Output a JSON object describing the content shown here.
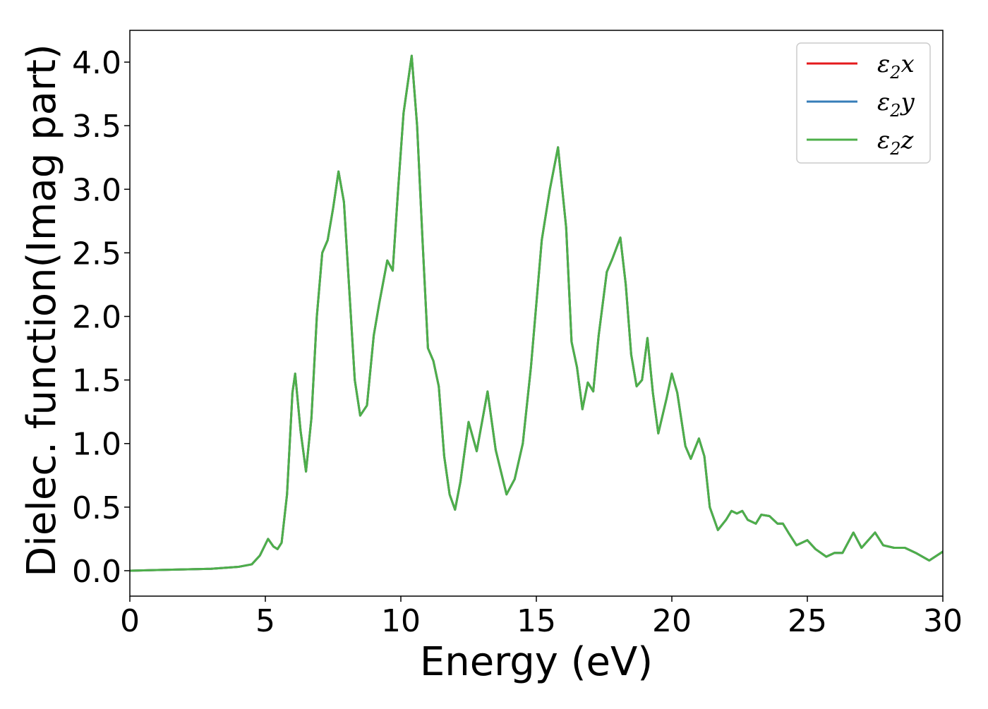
{
  "chart_data": {
    "type": "line",
    "title": "",
    "xlabel": "Energy (eV)",
    "ylabel": "Dielec. function(Imag part)",
    "xlim": [
      0,
      30
    ],
    "ylim": [
      -0.2,
      4.25
    ],
    "xticks": [
      0,
      5,
      10,
      15,
      20,
      25,
      30
    ],
    "xtick_labels": [
      "0",
      "5",
      "10",
      "15",
      "20",
      "25",
      "30"
    ],
    "yticks": [
      0.0,
      0.5,
      1.0,
      1.5,
      2.0,
      2.5,
      3.0,
      3.5,
      4.0
    ],
    "ytick_labels": [
      "0.0",
      "0.5",
      "1.0",
      "1.5",
      "2.0",
      "2.5",
      "3.0",
      "3.5",
      "4.0"
    ],
    "grid": false,
    "legend_position": "top-right",
    "series": [
      {
        "name": "ε2x",
        "legend_base": "ε",
        "legend_sub": "2",
        "legend_suffix": "x",
        "color": "#e41a1c",
        "x": [
          0,
          1,
          2,
          3,
          4,
          4.5,
          4.8,
          5.1,
          5.3,
          5.45,
          5.6,
          5.8,
          6.0,
          6.1,
          6.3,
          6.5,
          6.7,
          6.9,
          7.1,
          7.3,
          7.5,
          7.7,
          7.9,
          8.1,
          8.3,
          8.5,
          8.75,
          9.0,
          9.2,
          9.5,
          9.7,
          9.9,
          10.1,
          10.4,
          10.6,
          10.8,
          11.0,
          11.2,
          11.4,
          11.6,
          11.8,
          12.0,
          12.2,
          12.5,
          12.8,
          13.2,
          13.5,
          13.9,
          14.2,
          14.5,
          14.8,
          15.0,
          15.2,
          15.5,
          15.8,
          16.1,
          16.3,
          16.5,
          16.7,
          16.9,
          17.1,
          17.3,
          17.6,
          17.8,
          18.1,
          18.3,
          18.5,
          18.7,
          18.9,
          19.1,
          19.3,
          19.5,
          19.8,
          20.0,
          20.2,
          20.5,
          20.7,
          21.0,
          21.2,
          21.4,
          21.7,
          22.0,
          22.2,
          22.4,
          22.6,
          22.8,
          23.1,
          23.3,
          23.6,
          23.9,
          24.1,
          24.3,
          24.6,
          25.0,
          25.3,
          25.7,
          26.0,
          26.3,
          26.7,
          27.0,
          27.5,
          27.8,
          28.2,
          28.6,
          29.0,
          29.5,
          30.0
        ],
        "y": [
          0.0,
          0.005,
          0.01,
          0.015,
          0.03,
          0.05,
          0.12,
          0.25,
          0.19,
          0.17,
          0.22,
          0.6,
          1.4,
          1.55,
          1.1,
          0.78,
          1.2,
          2.0,
          2.5,
          2.6,
          2.85,
          3.14,
          2.9,
          2.2,
          1.5,
          1.22,
          1.3,
          1.85,
          2.1,
          2.44,
          2.36,
          3.0,
          3.6,
          4.05,
          3.5,
          2.6,
          1.75,
          1.65,
          1.45,
          0.9,
          0.6,
          0.48,
          0.7,
          1.17,
          0.94,
          1.41,
          0.95,
          0.6,
          0.72,
          1.0,
          1.6,
          2.1,
          2.6,
          3.0,
          3.33,
          2.7,
          1.8,
          1.6,
          1.27,
          1.48,
          1.41,
          1.85,
          2.35,
          2.45,
          2.62,
          2.25,
          1.7,
          1.45,
          1.5,
          1.83,
          1.4,
          1.08,
          1.35,
          1.55,
          1.4,
          0.98,
          0.88,
          1.04,
          0.9,
          0.5,
          0.32,
          0.4,
          0.47,
          0.45,
          0.47,
          0.4,
          0.37,
          0.44,
          0.43,
          0.37,
          0.37,
          0.3,
          0.2,
          0.24,
          0.17,
          0.11,
          0.14,
          0.14,
          0.3,
          0.18,
          0.3,
          0.2,
          0.18,
          0.18,
          0.14,
          0.08,
          0.15
        ]
      },
      {
        "name": "ε2y",
        "legend_base": "ε",
        "legend_sub": "2",
        "legend_suffix": "y",
        "color": "#377eb8",
        "x": [
          0,
          1,
          2,
          3,
          4,
          4.5,
          4.8,
          5.1,
          5.3,
          5.45,
          5.6,
          5.8,
          6.0,
          6.1,
          6.3,
          6.5,
          6.7,
          6.9,
          7.1,
          7.3,
          7.5,
          7.7,
          7.9,
          8.1,
          8.3,
          8.5,
          8.75,
          9.0,
          9.2,
          9.5,
          9.7,
          9.9,
          10.1,
          10.4,
          10.6,
          10.8,
          11.0,
          11.2,
          11.4,
          11.6,
          11.8,
          12.0,
          12.2,
          12.5,
          12.8,
          13.2,
          13.5,
          13.9,
          14.2,
          14.5,
          14.8,
          15.0,
          15.2,
          15.5,
          15.8,
          16.1,
          16.3,
          16.5,
          16.7,
          16.9,
          17.1,
          17.3,
          17.6,
          17.8,
          18.1,
          18.3,
          18.5,
          18.7,
          18.9,
          19.1,
          19.3,
          19.5,
          19.8,
          20.0,
          20.2,
          20.5,
          20.7,
          21.0,
          21.2,
          21.4,
          21.7,
          22.0,
          22.2,
          22.4,
          22.6,
          22.8,
          23.1,
          23.3,
          23.6,
          23.9,
          24.1,
          24.3,
          24.6,
          25.0,
          25.3,
          25.7,
          26.0,
          26.3,
          26.7,
          27.0,
          27.5,
          27.8,
          28.2,
          28.6,
          29.0,
          29.5,
          30.0
        ],
        "y": [
          0.0,
          0.005,
          0.01,
          0.015,
          0.03,
          0.05,
          0.12,
          0.25,
          0.19,
          0.17,
          0.22,
          0.6,
          1.4,
          1.55,
          1.1,
          0.78,
          1.2,
          2.0,
          2.5,
          2.6,
          2.85,
          3.14,
          2.9,
          2.2,
          1.5,
          1.22,
          1.3,
          1.85,
          2.1,
          2.44,
          2.36,
          3.0,
          3.6,
          4.05,
          3.5,
          2.6,
          1.75,
          1.65,
          1.45,
          0.9,
          0.6,
          0.48,
          0.7,
          1.17,
          0.94,
          1.41,
          0.95,
          0.6,
          0.72,
          1.0,
          1.6,
          2.1,
          2.6,
          3.0,
          3.33,
          2.7,
          1.8,
          1.6,
          1.27,
          1.48,
          1.41,
          1.85,
          2.35,
          2.45,
          2.62,
          2.25,
          1.7,
          1.45,
          1.5,
          1.83,
          1.4,
          1.08,
          1.35,
          1.55,
          1.4,
          0.98,
          0.88,
          1.04,
          0.9,
          0.5,
          0.32,
          0.4,
          0.47,
          0.45,
          0.47,
          0.4,
          0.37,
          0.44,
          0.43,
          0.37,
          0.37,
          0.3,
          0.2,
          0.24,
          0.17,
          0.11,
          0.14,
          0.14,
          0.3,
          0.18,
          0.3,
          0.2,
          0.18,
          0.18,
          0.14,
          0.08,
          0.15
        ]
      },
      {
        "name": "ε2z",
        "legend_base": "ε",
        "legend_sub": "2",
        "legend_suffix": "z",
        "color": "#4daf4a",
        "x": [
          0,
          1,
          2,
          3,
          4,
          4.5,
          4.8,
          5.1,
          5.3,
          5.45,
          5.6,
          5.8,
          6.0,
          6.1,
          6.3,
          6.5,
          6.7,
          6.9,
          7.1,
          7.3,
          7.5,
          7.7,
          7.9,
          8.1,
          8.3,
          8.5,
          8.75,
          9.0,
          9.2,
          9.5,
          9.7,
          9.9,
          10.1,
          10.4,
          10.6,
          10.8,
          11.0,
          11.2,
          11.4,
          11.6,
          11.8,
          12.0,
          12.2,
          12.5,
          12.8,
          13.2,
          13.5,
          13.9,
          14.2,
          14.5,
          14.8,
          15.0,
          15.2,
          15.5,
          15.8,
          16.1,
          16.3,
          16.5,
          16.7,
          16.9,
          17.1,
          17.3,
          17.6,
          17.8,
          18.1,
          18.3,
          18.5,
          18.7,
          18.9,
          19.1,
          19.3,
          19.5,
          19.8,
          20.0,
          20.2,
          20.5,
          20.7,
          21.0,
          21.2,
          21.4,
          21.7,
          22.0,
          22.2,
          22.4,
          22.6,
          22.8,
          23.1,
          23.3,
          23.6,
          23.9,
          24.1,
          24.3,
          24.6,
          25.0,
          25.3,
          25.7,
          26.0,
          26.3,
          26.7,
          27.0,
          27.5,
          27.8,
          28.2,
          28.6,
          29.0,
          29.5,
          30.0
        ],
        "y": [
          0.0,
          0.005,
          0.01,
          0.015,
          0.03,
          0.05,
          0.12,
          0.25,
          0.19,
          0.17,
          0.22,
          0.6,
          1.4,
          1.55,
          1.1,
          0.78,
          1.2,
          2.0,
          2.5,
          2.6,
          2.85,
          3.14,
          2.9,
          2.2,
          1.5,
          1.22,
          1.3,
          1.85,
          2.1,
          2.44,
          2.36,
          3.0,
          3.6,
          4.05,
          3.5,
          2.6,
          1.75,
          1.65,
          1.45,
          0.9,
          0.6,
          0.48,
          0.7,
          1.17,
          0.94,
          1.41,
          0.95,
          0.6,
          0.72,
          1.0,
          1.6,
          2.1,
          2.6,
          3.0,
          3.33,
          2.7,
          1.8,
          1.6,
          1.27,
          1.48,
          1.41,
          1.85,
          2.35,
          2.45,
          2.62,
          2.25,
          1.7,
          1.45,
          1.5,
          1.83,
          1.4,
          1.08,
          1.35,
          1.55,
          1.4,
          0.98,
          0.88,
          1.04,
          0.9,
          0.5,
          0.32,
          0.4,
          0.47,
          0.45,
          0.47,
          0.4,
          0.37,
          0.44,
          0.43,
          0.37,
          0.37,
          0.3,
          0.2,
          0.24,
          0.17,
          0.11,
          0.14,
          0.14,
          0.3,
          0.18,
          0.3,
          0.2,
          0.18,
          0.18,
          0.14,
          0.08,
          0.15
        ]
      }
    ]
  }
}
